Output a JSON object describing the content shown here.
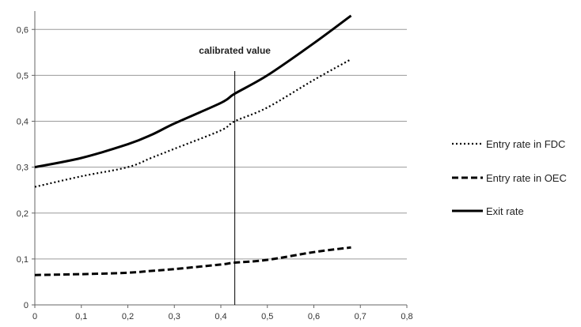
{
  "chart_data": {
    "type": "line",
    "title": "",
    "xlabel": "",
    "ylabel": "",
    "xlim": [
      0,
      0.8
    ],
    "ylim": [
      0,
      0.65
    ],
    "x_ticks": [
      "0",
      "0,1",
      "0,2",
      "0,3",
      "0,4",
      "0,5",
      "0,6",
      "0,7",
      "0,8"
    ],
    "y_ticks": [
      "0",
      "0,1",
      "0,2",
      "0,3",
      "0,4",
      "0,5",
      "0,6"
    ],
    "grid": "horizontal",
    "legend_position": "right",
    "x": [
      0,
      0.1,
      0.2,
      0.25,
      0.3,
      0.4,
      0.43,
      0.5,
      0.6,
      0.68
    ],
    "series": [
      {
        "name": "Entry rate in FDC",
        "style": "dotted",
        "values": [
          0.257,
          0.28,
          0.3,
          0.32,
          0.34,
          0.38,
          0.4,
          0.43,
          0.49,
          0.535
        ]
      },
      {
        "name": "Entry rate in OEC",
        "style": "dashed",
        "values": [
          0.065,
          0.067,
          0.07,
          0.074,
          0.078,
          0.088,
          0.092,
          0.098,
          0.115,
          0.125
        ]
      },
      {
        "name": "Exit rate",
        "style": "solid",
        "values": [
          0.3,
          0.32,
          0.35,
          0.37,
          0.395,
          0.44,
          0.46,
          0.5,
          0.57,
          0.63
        ]
      }
    ],
    "annotations": [
      {
        "text": "calibrated value",
        "x": 0.43
      }
    ]
  }
}
